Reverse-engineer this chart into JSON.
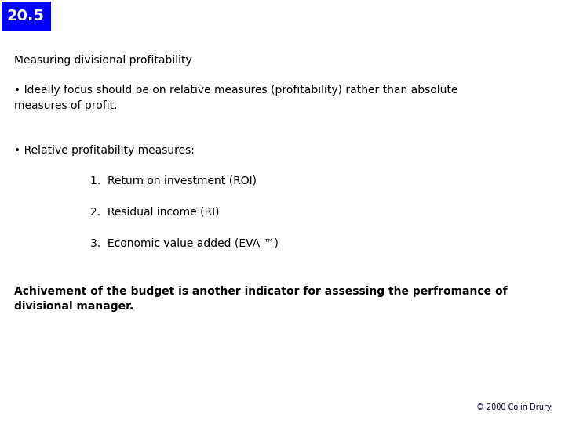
{
  "badge_text": "20.5",
  "badge_bg": "#0000FF",
  "badge_fg": "#FFFFFF",
  "title": "Measuring divisional profitability",
  "bullet1": "• Ideally focus should be on relative measures (profitability) rather than absolute\nmeasures of profit.",
  "bullet2": "• Relative profitability measures:",
  "item1": "1.  Return on investment (ROI)",
  "item2": "2.  Residual income (RI)",
  "item3": "3.  Economic value added (EVA ™)",
  "footer_bold": "Achivement of the budget is another indicator for assessing the perfromance of\ndivisional manager.",
  "copyright": "© 2000 Colin Drury",
  "bg_color": "#FFFFFF",
  "text_color": "#000000",
  "copyright_color": "#000033",
  "title_fontsize": 10,
  "body_fontsize": 10,
  "footer_fontsize": 10,
  "copyright_fontsize": 7,
  "badge_fontsize": 14
}
